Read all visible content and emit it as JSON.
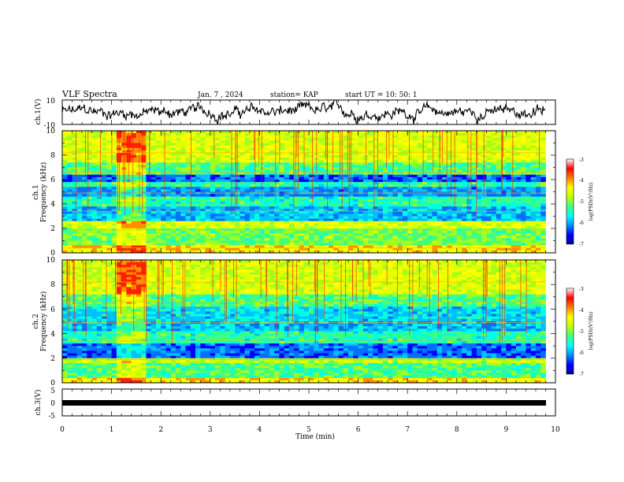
{
  "header": {
    "title": "VLF Spectra",
    "date": "Jan. 7 , 2024",
    "station": "station= KAP",
    "start": "start UT =  10: 50: 1"
  },
  "chart_data": [
    {
      "type": "line",
      "panel": "ch1-waveform",
      "ylabel": "ch.1(V)",
      "ytick_labels": [
        "10",
        "-10"
      ],
      "ylim": [
        -10,
        10
      ],
      "xlim": [
        0,
        10
      ],
      "line_color": "#000000"
    },
    {
      "type": "heatmap",
      "panel": "ch1-spectrogram",
      "ylabel_line1": "ch.1",
      "ylabel_line2": "Frequency (kHz)",
      "ytick_labels": [
        "0",
        "2",
        "4",
        "6",
        "8",
        "10"
      ],
      "ylim": [
        0,
        10
      ],
      "xlim": [
        0,
        10
      ],
      "data_end_min": 9.8,
      "colorbar": {
        "label": "log(PSD)(V²/Hz)",
        "tick_labels": [
          "-3",
          "-4",
          "-5",
          "-6",
          "-7"
        ],
        "range": [
          -7,
          -3
        ],
        "colors": [
          "#0000a0",
          "#0000ff",
          "#0090ff",
          "#00ffff",
          "#40ff80",
          "#c0ff00",
          "#ffff00",
          "#ff8000",
          "#ff0000",
          "#ffffff"
        ]
      }
    },
    {
      "type": "heatmap",
      "panel": "ch2-spectrogram",
      "ylabel_line1": "ch.2",
      "ylabel_line2": "Frequency (kHz)",
      "ytick_labels": [
        "0",
        "2",
        "4",
        "6",
        "8",
        "10"
      ],
      "ylim": [
        0,
        10
      ],
      "xlim": [
        0,
        10
      ],
      "data_end_min": 9.8,
      "colorbar": {
        "label": "log(PSD)(V²/Hz)",
        "tick_labels": [
          "-3",
          "-4",
          "-5",
          "-6",
          "-7"
        ],
        "range": [
          -7,
          -3
        ],
        "colors": [
          "#0000a0",
          "#0000ff",
          "#0090ff",
          "#00ffff",
          "#40ff80",
          "#c0ff00",
          "#ffff00",
          "#ff8000",
          "#ff0000",
          "#ffffff"
        ]
      }
    },
    {
      "type": "line",
      "panel": "ch3-waveform",
      "ylabel": "ch.3(V)",
      "ytick_labels": [
        "5",
        "0",
        "-5"
      ],
      "ylim": [
        -5,
        5
      ],
      "xlim": [
        0,
        10
      ],
      "line_color": "#000000"
    }
  ],
  "xaxis": {
    "label": "Time (min)",
    "tick_labels": [
      "0",
      "1",
      "2",
      "3",
      "4",
      "5",
      "6",
      "7",
      "8",
      "9",
      "10"
    ]
  }
}
